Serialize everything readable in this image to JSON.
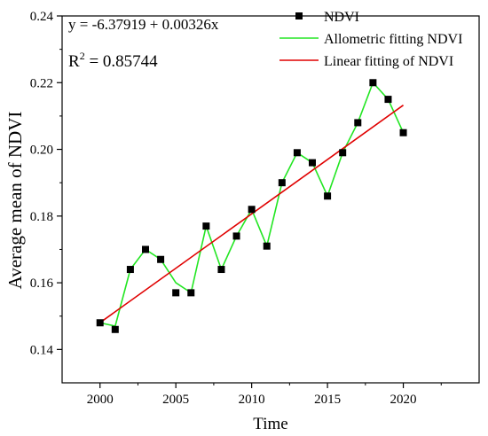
{
  "chart_data": {
    "type": "line",
    "xlabel": "Time",
    "ylabel": "Average mean of NDVI",
    "xlim": [
      1997.5,
      2025
    ],
    "ylim": [
      0.13,
      0.24
    ],
    "xticks": [
      2000,
      2005,
      2010,
      2015,
      2020
    ],
    "yticks": [
      0.14,
      0.16,
      0.18,
      0.2,
      0.22,
      0.24
    ],
    "ytick_labels": [
      "0.14",
      "0.16",
      "0.18",
      "0.20",
      "0.22",
      "0.24"
    ],
    "annotations": {
      "equation": "y = -6.37919 + 0.00326x",
      "r2_prefix": "R",
      "r2_sup": "2",
      "r2_value": " = 0.85744"
    },
    "legend_position": "top-right",
    "series": [
      {
        "name": "NDVI",
        "kind": "scatter",
        "color": "#000000",
        "x": [
          2000,
          2001,
          2002,
          2003,
          2004,
          2005,
          2006,
          2007,
          2008,
          2009,
          2010,
          2011,
          2012,
          2013,
          2014,
          2015,
          2016,
          2017,
          2018,
          2019,
          2020
        ],
        "y": [
          0.148,
          0.146,
          0.164,
          0.17,
          0.167,
          0.157,
          0.157,
          0.177,
          0.164,
          0.174,
          0.182,
          0.171,
          0.19,
          0.199,
          0.196,
          0.186,
          0.199,
          0.208,
          0.22,
          0.215,
          0.205
        ]
      },
      {
        "name": "Allometric fitting NDVI",
        "kind": "line",
        "color": "#22e622",
        "x": [
          2000,
          2001,
          2002,
          2003,
          2004,
          2005,
          2006,
          2007,
          2008,
          2009,
          2010,
          2011,
          2012,
          2013,
          2014,
          2015,
          2016,
          2017,
          2018,
          2019,
          2020
        ],
        "y": [
          0.148,
          0.147,
          0.164,
          0.17,
          0.167,
          0.16,
          0.157,
          0.177,
          0.164,
          0.174,
          0.182,
          0.171,
          0.19,
          0.199,
          0.196,
          0.186,
          0.199,
          0.208,
          0.22,
          0.215,
          0.205
        ]
      },
      {
        "name": "Linear fitting of NDVI",
        "kind": "line",
        "color": "#e00000",
        "x": [
          2000,
          2020
        ],
        "y": [
          0.14805,
          0.21325
        ]
      }
    ]
  }
}
